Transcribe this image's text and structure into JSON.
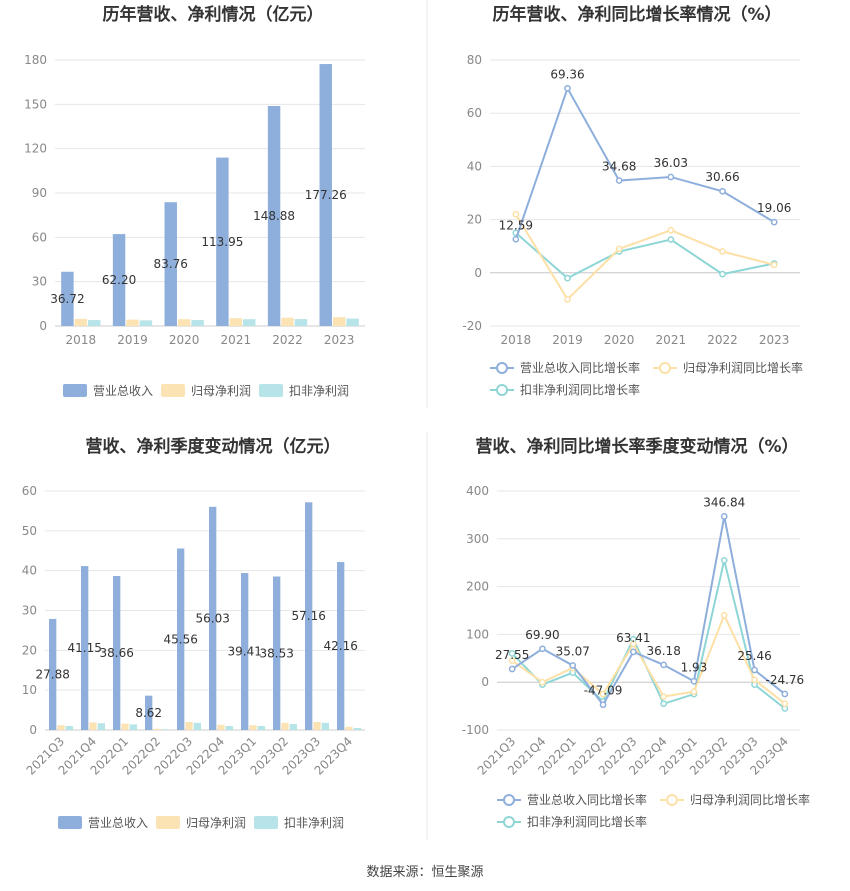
{
  "source": "数据来源：恒生聚源",
  "colors": {
    "revenue": "#8eaedc",
    "net_profit": "#fce3b4",
    "deducted_profit": "#b7e4e8",
    "rev_line": "#8eaedc",
    "np_line": "#fde0a6",
    "dp_line": "#8ed6d6",
    "grid": "#e6e6e6",
    "axis": "#cccccc",
    "divider": "#e8e8e8"
  },
  "chart_data": [
    {
      "id": "annual-bars",
      "type": "bar",
      "title": "历年营收、净利情况（亿元）",
      "categories": [
        "2018",
        "2019",
        "2020",
        "2021",
        "2022",
        "2023"
      ],
      "ylim": [
        0,
        180
      ],
      "yticks": [
        0,
        30,
        60,
        90,
        120,
        150,
        180
      ],
      "grid": true,
      "legend": "bottom",
      "series": [
        {
          "name": "营业总收入",
          "color_key": "revenue",
          "values": [
            36.72,
            62.2,
            83.76,
            113.95,
            148.88,
            177.26
          ],
          "labels": [
            "36.72",
            "62.20",
            "83.76",
            "113.95",
            "148.88",
            "177.26"
          ]
        },
        {
          "name": "归母净利润",
          "color_key": "net_profit",
          "values": [
            4.8,
            4.3,
            4.6,
            5.3,
            5.6,
            6.0
          ]
        },
        {
          "name": "扣非净利润",
          "color_key": "deducted_profit",
          "values": [
            4.0,
            3.8,
            4.1,
            4.6,
            4.7,
            5.0
          ]
        }
      ]
    },
    {
      "id": "annual-growth",
      "type": "line",
      "title": "历年营收、净利同比增长率情况（%）",
      "categories": [
        "2018",
        "2019",
        "2020",
        "2021",
        "2022",
        "2023"
      ],
      "ylim": [
        -20,
        80
      ],
      "yticks": [
        -20,
        0,
        20,
        40,
        60,
        80
      ],
      "grid": true,
      "legend": "bottom",
      "series": [
        {
          "name": "营业总收入同比增长率",
          "color_key": "rev_line",
          "values": [
            12.59,
            69.36,
            34.68,
            36.03,
            30.66,
            19.06
          ],
          "labels": [
            "12.59",
            "69.36",
            "34.68",
            "36.03",
            "30.66",
            "19.06"
          ]
        },
        {
          "name": "归母净利润同比增长率",
          "color_key": "np_line",
          "values": [
            22.0,
            -10.0,
            9.0,
            16.0,
            8.0,
            3.0
          ]
        },
        {
          "name": "扣非净利润同比增长率",
          "color_key": "dp_line",
          "values": [
            15.0,
            -2.0,
            8.0,
            12.5,
            -0.5,
            3.5
          ]
        }
      ]
    },
    {
      "id": "quarterly-bars",
      "type": "bar",
      "title": "营收、净利季度变动情况（亿元）",
      "categories": [
        "2021Q3",
        "2021Q4",
        "2022Q1",
        "2022Q2",
        "2022Q3",
        "2022Q4",
        "2023Q1",
        "2023Q2",
        "2023Q3",
        "2023Q4"
      ],
      "ylim": [
        0,
        60
      ],
      "yticks": [
        0,
        10,
        20,
        30,
        40,
        50,
        60
      ],
      "grid": true,
      "legend": "bottom",
      "series": [
        {
          "name": "营业总收入",
          "color_key": "revenue",
          "values": [
            27.88,
            41.15,
            38.66,
            8.62,
            45.56,
            56.03,
            39.41,
            38.53,
            57.16,
            42.16
          ],
          "labels": [
            "27.88",
            "41.15",
            "38.66",
            "8.62",
            "45.56",
            "56.03",
            "39.41",
            "38.53",
            "57.16",
            "42.16"
          ]
        },
        {
          "name": "归母净利润",
          "color_key": "net_profit",
          "values": [
            1.2,
            1.9,
            1.6,
            0.3,
            2.0,
            1.3,
            1.2,
            1.8,
            2.0,
            0.8
          ]
        },
        {
          "name": "扣非净利润",
          "color_key": "deducted_profit",
          "values": [
            1.0,
            1.7,
            1.4,
            0.2,
            1.8,
            1.0,
            1.0,
            1.5,
            1.8,
            0.5
          ]
        }
      ]
    },
    {
      "id": "quarterly-growth",
      "type": "line",
      "title": "营收、净利同比增长率季度变动情况（%）",
      "categories": [
        "2021Q3",
        "2021Q4",
        "2022Q1",
        "2022Q2",
        "2022Q3",
        "2022Q4",
        "2023Q1",
        "2023Q2",
        "2023Q3",
        "2023Q4"
      ],
      "ylim": [
        -100,
        400
      ],
      "yticks": [
        -100,
        0,
        100,
        200,
        300,
        400
      ],
      "grid": true,
      "legend": "bottom",
      "series": [
        {
          "name": "营业总收入同比增长率",
          "color_key": "rev_line",
          "values": [
            27.55,
            69.9,
            35.07,
            -47.09,
            63.41,
            36.18,
            1.93,
            346.84,
            25.46,
            -24.76
          ],
          "labels": [
            "27.55",
            "69.90",
            "35.07",
            "-47.09",
            "63.41",
            "36.18",
            "1.93",
            "346.84",
            "25.46",
            "-24.76"
          ]
        },
        {
          "name": "归母净利润同比增长率",
          "color_key": "np_line",
          "values": [
            45,
            0,
            30,
            -25,
            80,
            -30,
            -20,
            140,
            5,
            -45
          ]
        },
        {
          "name": "扣非净利润同比增长率",
          "color_key": "dp_line",
          "values": [
            60,
            -5,
            20,
            -40,
            90,
            -45,
            -25,
            255,
            -5,
            -55
          ]
        }
      ]
    }
  ]
}
